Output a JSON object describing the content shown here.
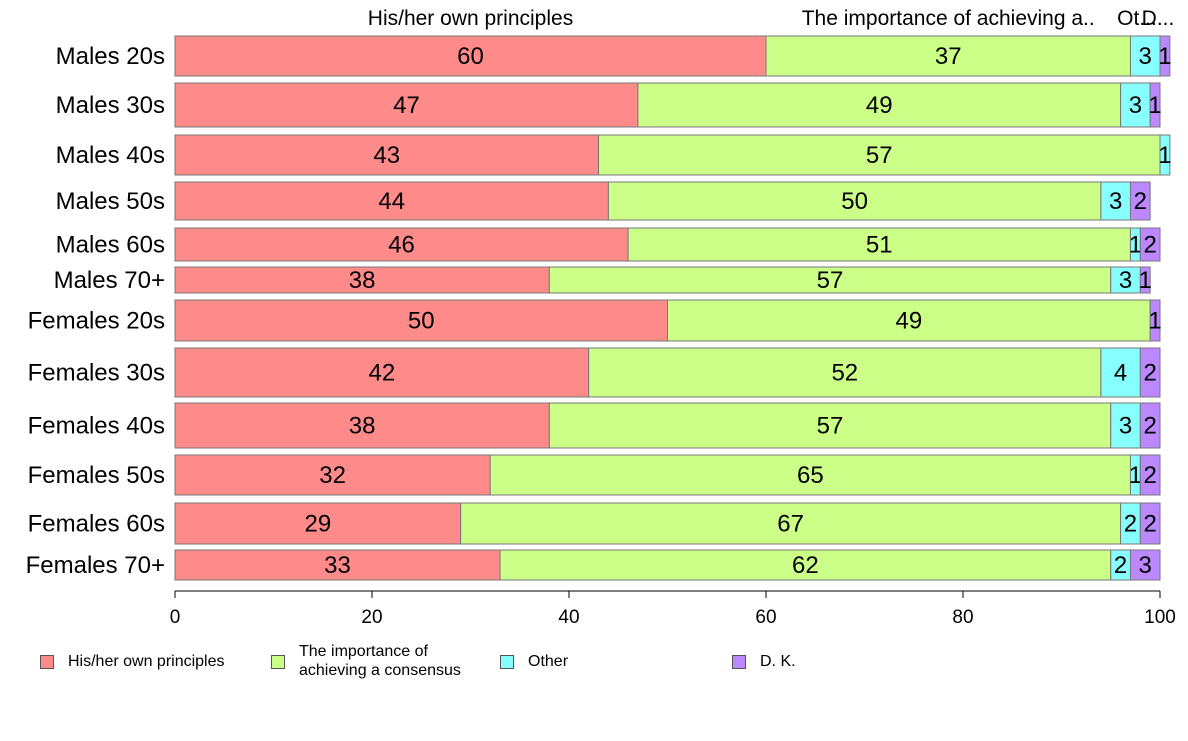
{
  "chart_data": {
    "type": "bar",
    "orientation": "horizontal",
    "stacked": true,
    "categories": [
      "Males 20s",
      "Males 30s",
      "Males 40s",
      "Males 50s",
      "Males 60s",
      "Males 70+",
      "Females 20s",
      "Females 30s",
      "Females 40s",
      "Females 50s",
      "Females 60s",
      "Females 70+"
    ],
    "series": [
      {
        "name": "His/her own principles",
        "color": "#ff8a8a",
        "values": [
          60,
          47,
          43,
          44,
          46,
          38,
          50,
          42,
          38,
          32,
          29,
          33
        ]
      },
      {
        "name": "The importance of achieving a consensus",
        "color": "#ccff88",
        "values": [
          37,
          49,
          57,
          50,
          51,
          57,
          49,
          52,
          57,
          65,
          67,
          62
        ]
      },
      {
        "name": "Other",
        "color": "#88ffff",
        "values": [
          3,
          3,
          1,
          3,
          1,
          3,
          0,
          4,
          3,
          1,
          2,
          2
        ]
      },
      {
        "name": "D. K.",
        "color": "#bb88ff",
        "values": [
          1,
          1,
          0,
          2,
          2,
          1,
          1,
          2,
          2,
          2,
          2,
          3
        ]
      }
    ],
    "top_labels": [
      "His/her own principles",
      "The importance of achieving a..",
      "Ot...",
      "D..."
    ],
    "xlim": [
      0,
      100
    ],
    "xticks": [
      "0",
      "20",
      "40",
      "60",
      "80",
      "100"
    ],
    "legend": {
      "placement": "bottom",
      "labels": [
        "His/her own principles",
        "The importance of\nachieving a consensus",
        "Other",
        "D. K."
      ]
    }
  }
}
